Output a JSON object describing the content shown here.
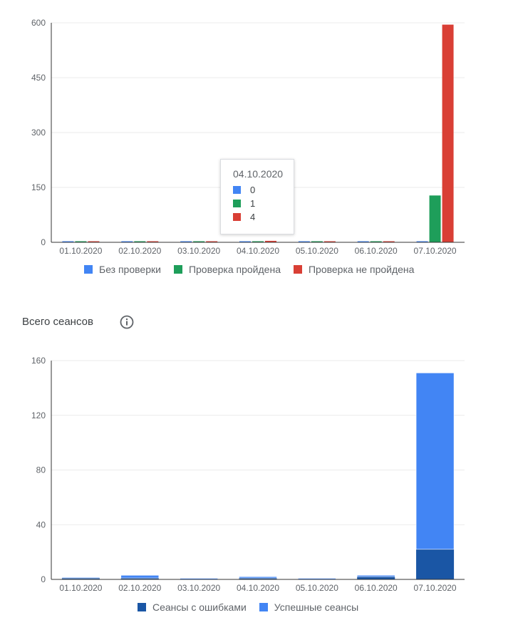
{
  "charts": {
    "verification": {
      "tooltip": {
        "date": "04.10.2020",
        "rows": [
          {
            "value": "0",
            "color": "#4285f4"
          },
          {
            "value": "1",
            "color": "#1e9e5a"
          },
          {
            "value": "4",
            "color": "#d93f35"
          }
        ]
      }
    },
    "sessions": {
      "title": "Всего сеансов",
      "info_icon": "info-icon"
    }
  },
  "chart_data": [
    {
      "type": "bar",
      "title": "",
      "xlabel": "",
      "ylabel": "",
      "categories": [
        "01.10.2020",
        "02.10.2020",
        "03.10.2020",
        "04.10.2020",
        "05.10.2020",
        "06.10.2020",
        "07.10.2020"
      ],
      "yticks": [
        "0",
        "150",
        "300",
        "450",
        "600"
      ],
      "ylim": [
        0,
        600
      ],
      "grid": true,
      "legend": "bottom",
      "series": [
        {
          "name": "Без проверки",
          "color": "#4285f4",
          "values": [
            0,
            2,
            0,
            0,
            0,
            0,
            0
          ]
        },
        {
          "name": "Проверка пройдена",
          "color": "#1e9e5a",
          "values": [
            0,
            0,
            0,
            1,
            0,
            0,
            128
          ]
        },
        {
          "name": "Проверка не пройдена",
          "color": "#d93f35",
          "values": [
            0,
            0,
            0,
            4,
            0,
            2,
            595
          ]
        }
      ]
    },
    {
      "type": "bar",
      "stacked": true,
      "title": "Всего сеансов",
      "xlabel": "",
      "ylabel": "",
      "categories": [
        "01.10.2020",
        "02.10.2020",
        "03.10.2020",
        "04.10.2020",
        "05.10.2020",
        "06.10.2020",
        "07.10.2020"
      ],
      "yticks": [
        "0",
        "40",
        "80",
        "120",
        "160"
      ],
      "ylim": [
        0,
        160
      ],
      "grid": true,
      "legend": "bottom",
      "series": [
        {
          "name": "Сеансы с ошибками",
          "color": "#1a56a5",
          "values": [
            1,
            1,
            0,
            1,
            0,
            2,
            22
          ]
        },
        {
          "name": "Успешные сеансы",
          "color": "#4285f4",
          "values": [
            0,
            2,
            0.5,
            1,
            0.5,
            1,
            129
          ]
        }
      ]
    }
  ]
}
